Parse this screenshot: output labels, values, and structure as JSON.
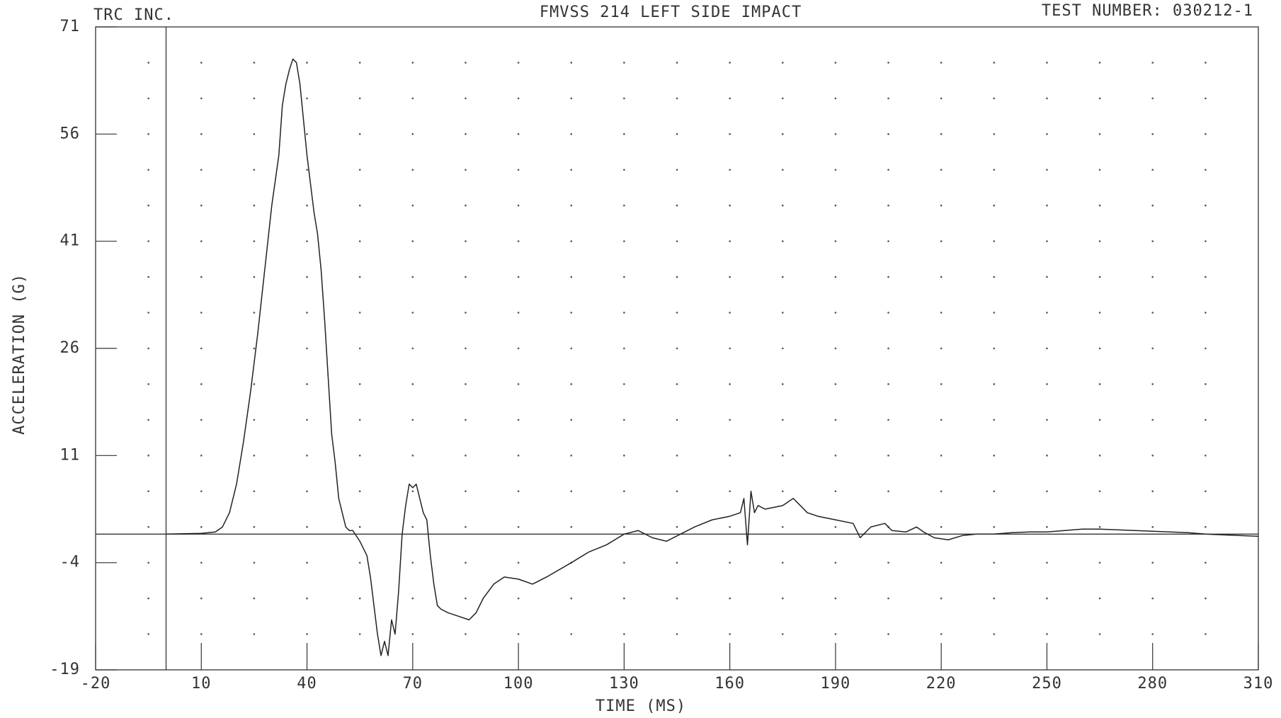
{
  "chart_data": {
    "type": "line",
    "company": "TRC INC.",
    "title": "FMVSS 214 LEFT SIDE IMPACT",
    "test_number": "TEST NUMBER: 030212-1",
    "x_label": "TIME (MS)",
    "y_label": "ACCELERATION (G)",
    "xlim": [
      -20,
      310
    ],
    "xticks": [
      -20,
      10,
      40,
      70,
      100,
      130,
      160,
      190,
      220,
      250,
      280,
      310
    ],
    "ylim": [
      -19,
      71
    ],
    "yticks": [
      -19,
      -4,
      11,
      26,
      41,
      56,
      71
    ],
    "grid": "dotted",
    "color": "#222222",
    "x": [
      0,
      10,
      14,
      16,
      18,
      20,
      22,
      24,
      26,
      28,
      30,
      32,
      33,
      34,
      35,
      36,
      37,
      38,
      39,
      40,
      41,
      42,
      43,
      44,
      45,
      46,
      47,
      48,
      49,
      50,
      51,
      52,
      53,
      55,
      57,
      58,
      59,
      60,
      61,
      62,
      63,
      64,
      65,
      66,
      67,
      68,
      69,
      70,
      71,
      72,
      73,
      74,
      75,
      76,
      77,
      78,
      80,
      83,
      86,
      88,
      90,
      93,
      96,
      100,
      104,
      108,
      115,
      120,
      125,
      130,
      134,
      138,
      142,
      146,
      150,
      155,
      160,
      163,
      164,
      165,
      166,
      167,
      168,
      170,
      175,
      178,
      180,
      182,
      185,
      190,
      195,
      197,
      200,
      204,
      206,
      210,
      213,
      215,
      218,
      222,
      226,
      230,
      235,
      240,
      245,
      250,
      255,
      260,
      265,
      270,
      275,
      280,
      285,
      290,
      295,
      300,
      305,
      310
    ],
    "values": [
      0,
      0.1,
      0.3,
      1,
      3,
      7,
      13,
      20,
      28,
      37,
      46,
      53,
      60,
      63,
      65,
      66.5,
      66,
      63,
      58,
      53,
      49,
      45,
      42,
      37,
      30,
      22,
      14,
      10,
      5,
      3,
      1,
      0.5,
      0.5,
      -1,
      -3,
      -6,
      -10,
      -14,
      -17,
      -15,
      -17,
      -12,
      -14,
      -8,
      0,
      4,
      7,
      6.5,
      7,
      5,
      3,
      2,
      -3,
      -7,
      -10,
      -10.5,
      -11,
      -11.5,
      -12,
      -11,
      -9,
      -7,
      -6,
      -6.3,
      -7,
      -6,
      -4,
      -2.5,
      -1.5,
      0,
      0.5,
      -0.5,
      -1,
      0,
      1,
      2,
      2.5,
      3,
      5,
      -1.5,
      6,
      3,
      4,
      3.5,
      4,
      5,
      4,
      3,
      2.5,
      2,
      1.5,
      -0.5,
      1,
      1.5,
      0.5,
      0.3,
      1,
      0.3,
      -0.5,
      -0.8,
      -0.2,
      0,
      0,
      0.2,
      0.3,
      0.3,
      0.5,
      0.7,
      0.7,
      0.6,
      0.5,
      0.4,
      0.3,
      0.2,
      0,
      -0.1,
      -0.2,
      -0.3
    ]
  }
}
